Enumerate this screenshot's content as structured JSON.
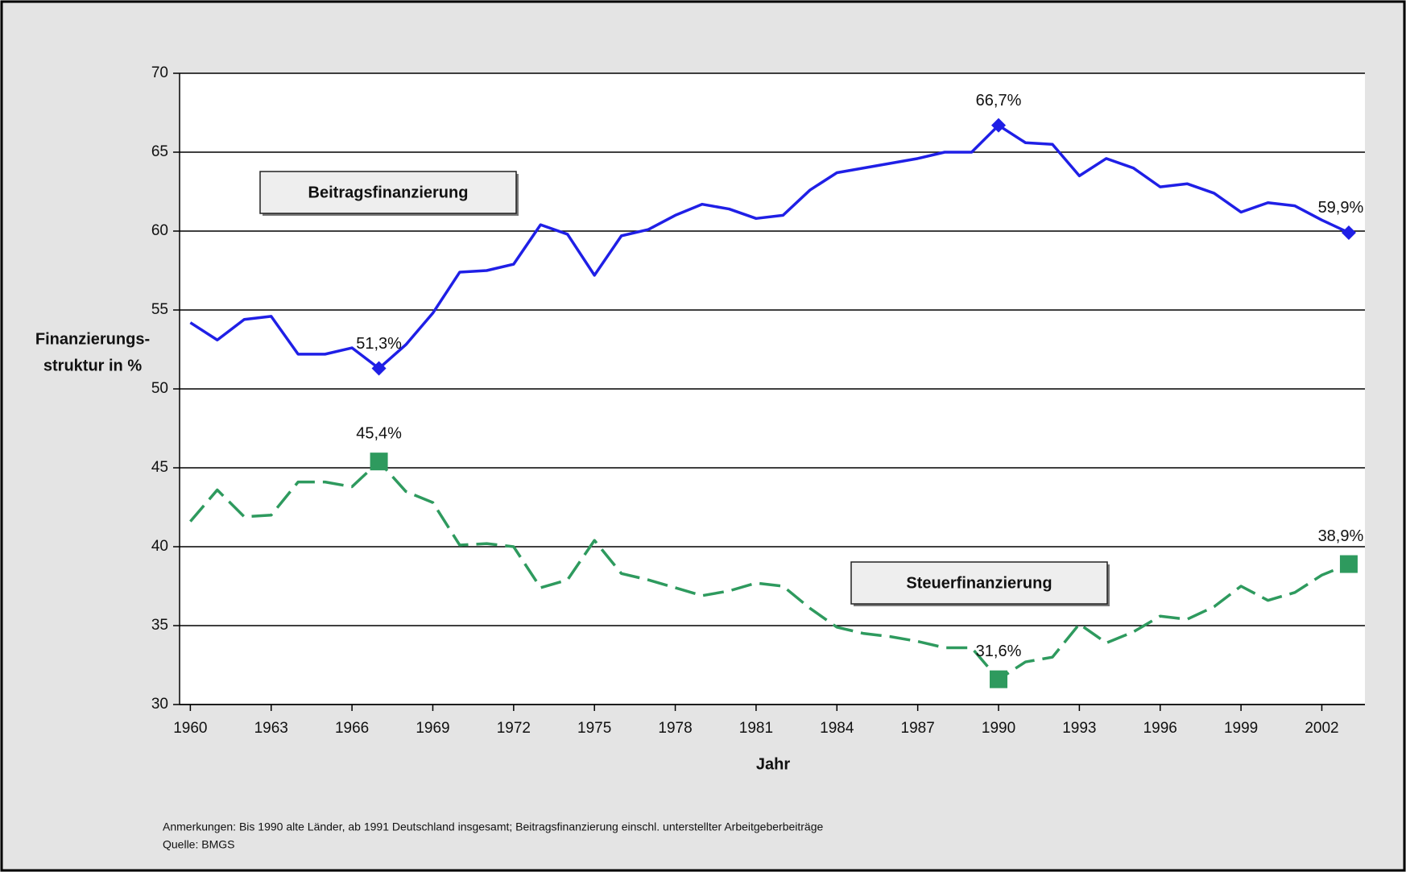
{
  "chart_data": {
    "type": "line",
    "xlabel": "Jahr",
    "ylabel": [
      "Finanzierungs-",
      "struktur in %"
    ],
    "x": [
      1960,
      1961,
      1962,
      1963,
      1964,
      1965,
      1966,
      1967,
      1968,
      1969,
      1970,
      1971,
      1972,
      1973,
      1974,
      1975,
      1976,
      1977,
      1978,
      1979,
      1980,
      1981,
      1982,
      1983,
      1984,
      1985,
      1986,
      1987,
      1988,
      1989,
      1990,
      1991,
      1992,
      1993,
      1994,
      1995,
      1996,
      1997,
      1998,
      1999,
      2000,
      2001,
      2002,
      2003
    ],
    "series": [
      {
        "name": "Beitragsfinanzierung",
        "color": "#1f1fe6",
        "dash": false,
        "values": [
          54.2,
          53.1,
          54.4,
          54.6,
          52.2,
          52.2,
          52.6,
          51.3,
          52.8,
          54.8,
          57.4,
          57.5,
          57.9,
          60.4,
          59.8,
          57.2,
          59.7,
          60.1,
          61.0,
          61.7,
          61.4,
          60.8,
          61.0,
          62.6,
          63.7,
          64.0,
          64.3,
          64.6,
          65.0,
          65.0,
          66.7,
          65.6,
          65.5,
          63.5,
          64.6,
          64.0,
          62.8,
          63.0,
          62.4,
          61.2,
          61.8,
          61.6,
          60.7,
          59.9
        ]
      },
      {
        "name": "Steuerfinanzierung",
        "color": "#2e9a5e",
        "dash": true,
        "values": [
          41.6,
          43.6,
          41.9,
          42.0,
          44.1,
          44.1,
          43.8,
          45.4,
          43.5,
          42.8,
          40.1,
          40.2,
          40.0,
          37.4,
          37.9,
          40.4,
          38.3,
          37.9,
          37.4,
          36.9,
          37.2,
          37.7,
          37.5,
          36.1,
          34.9,
          34.5,
          34.3,
          34.0,
          33.6,
          33.6,
          31.6,
          32.7,
          33.0,
          35.1,
          33.9,
          34.6,
          35.6,
          35.4,
          36.2,
          37.5,
          36.6,
          37.1,
          38.2,
          38.9
        ]
      }
    ],
    "annotations": [
      {
        "text": "51,3%",
        "series": 0,
        "x": 1967
      },
      {
        "text": "66,7%",
        "series": 0,
        "x": 1990
      },
      {
        "text": "59,9%",
        "series": 0,
        "x": 2003
      },
      {
        "text": "45,4%",
        "series": 1,
        "x": 1967
      },
      {
        "text": "31,6%",
        "series": 1,
        "x": 1990
      },
      {
        "text": "38,9%",
        "series": 1,
        "x": 2003
      }
    ],
    "xlim": [
      1959.6,
      2003.6
    ],
    "xticks": [
      1960,
      1963,
      1966,
      1969,
      1972,
      1975,
      1978,
      1981,
      1984,
      1987,
      1990,
      1993,
      1996,
      1999,
      2002
    ],
    "ylim": [
      30,
      70
    ],
    "yticks": [
      30,
      35,
      40,
      45,
      50,
      55,
      60,
      65,
      70
    ],
    "grid": true,
    "notes": [
      "Anmerkungen: Bis 1990 alte Länder, ab 1991 Deutschland insgesamt; Beitragsfinanzierung einschl. unterstellter Arbeitgeberbeiträge",
      "Quelle: BMGS"
    ]
  }
}
